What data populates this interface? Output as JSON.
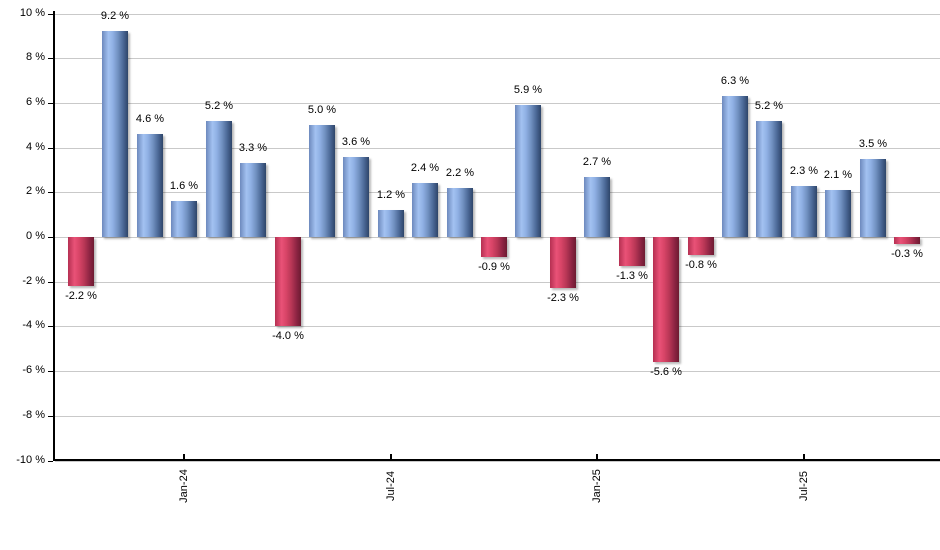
{
  "chart_data": {
    "type": "bar",
    "title": "",
    "xlabel": "",
    "ylabel": "",
    "ylim": [
      -10,
      10
    ],
    "grid": true,
    "legend": "none",
    "y_ticks": [
      {
        "value": 10,
        "label": "10 %"
      },
      {
        "value": 8,
        "label": "8 %"
      },
      {
        "value": 6,
        "label": "6 %"
      },
      {
        "value": 4,
        "label": "4 %"
      },
      {
        "value": 2,
        "label": "2 %"
      },
      {
        "value": 0,
        "label": "0 %"
      },
      {
        "value": -2,
        "label": "-2 %"
      },
      {
        "value": -4,
        "label": "-4 %"
      },
      {
        "value": -6,
        "label": "-6 %"
      },
      {
        "value": -8,
        "label": "-8 %"
      },
      {
        "value": -10,
        "label": "-10 %"
      }
    ],
    "x_ticks": [
      {
        "bar_index": 3,
        "label": "Jan-24"
      },
      {
        "bar_index": 9,
        "label": "Jul-24"
      },
      {
        "bar_index": 15,
        "label": "Jan-25"
      },
      {
        "bar_index": 21,
        "label": "Jul-25"
      }
    ],
    "bars": [
      {
        "value": -2.2,
        "label": "-2.2 %"
      },
      {
        "value": 9.2,
        "label": "9.2 %"
      },
      {
        "value": 4.6,
        "label": "4.6 %"
      },
      {
        "value": 1.6,
        "label": "1.6 %"
      },
      {
        "value": 5.2,
        "label": "5.2 %"
      },
      {
        "value": 3.3,
        "label": "3.3 %"
      },
      {
        "value": -4.0,
        "label": "-4.0 %"
      },
      {
        "value": 5.0,
        "label": "5.0 %"
      },
      {
        "value": 3.6,
        "label": "3.6 %"
      },
      {
        "value": 1.2,
        "label": "1.2 %"
      },
      {
        "value": 2.4,
        "label": "2.4 %"
      },
      {
        "value": 2.2,
        "label": "2.2 %"
      },
      {
        "value": -0.9,
        "label": "-0.9 %"
      },
      {
        "value": 5.9,
        "label": "5.9 %"
      },
      {
        "value": -2.3,
        "label": "-2.3 %"
      },
      {
        "value": 2.7,
        "label": "2.7 %"
      },
      {
        "value": -1.3,
        "label": "-1.3 %"
      },
      {
        "value": -5.6,
        "label": "-5.6 %"
      },
      {
        "value": -0.8,
        "label": "-0.8 %"
      },
      {
        "value": 6.3,
        "label": "6.3 %"
      },
      {
        "value": 5.2,
        "label": "5.2 %"
      },
      {
        "value": 2.3,
        "label": "2.3 %"
      },
      {
        "value": 2.1,
        "label": "2.1 %"
      },
      {
        "value": 3.5,
        "label": "3.5 %"
      },
      {
        "value": -0.3,
        "label": "-0.3 %"
      }
    ]
  },
  "colors": {
    "positive_gradient": [
      "#6d89bd",
      "#a3c2f1",
      "#8fb0e4",
      "#7090c0",
      "#4a6795",
      "#2e4569"
    ],
    "negative_gradient": [
      "#b53052",
      "#e95277",
      "#d94568",
      "#b93756",
      "#8f2544",
      "#6d1b31"
    ],
    "gridline": "#c9c9c9",
    "axis": "#000000",
    "text": "#000000",
    "background": "#ffffff"
  }
}
